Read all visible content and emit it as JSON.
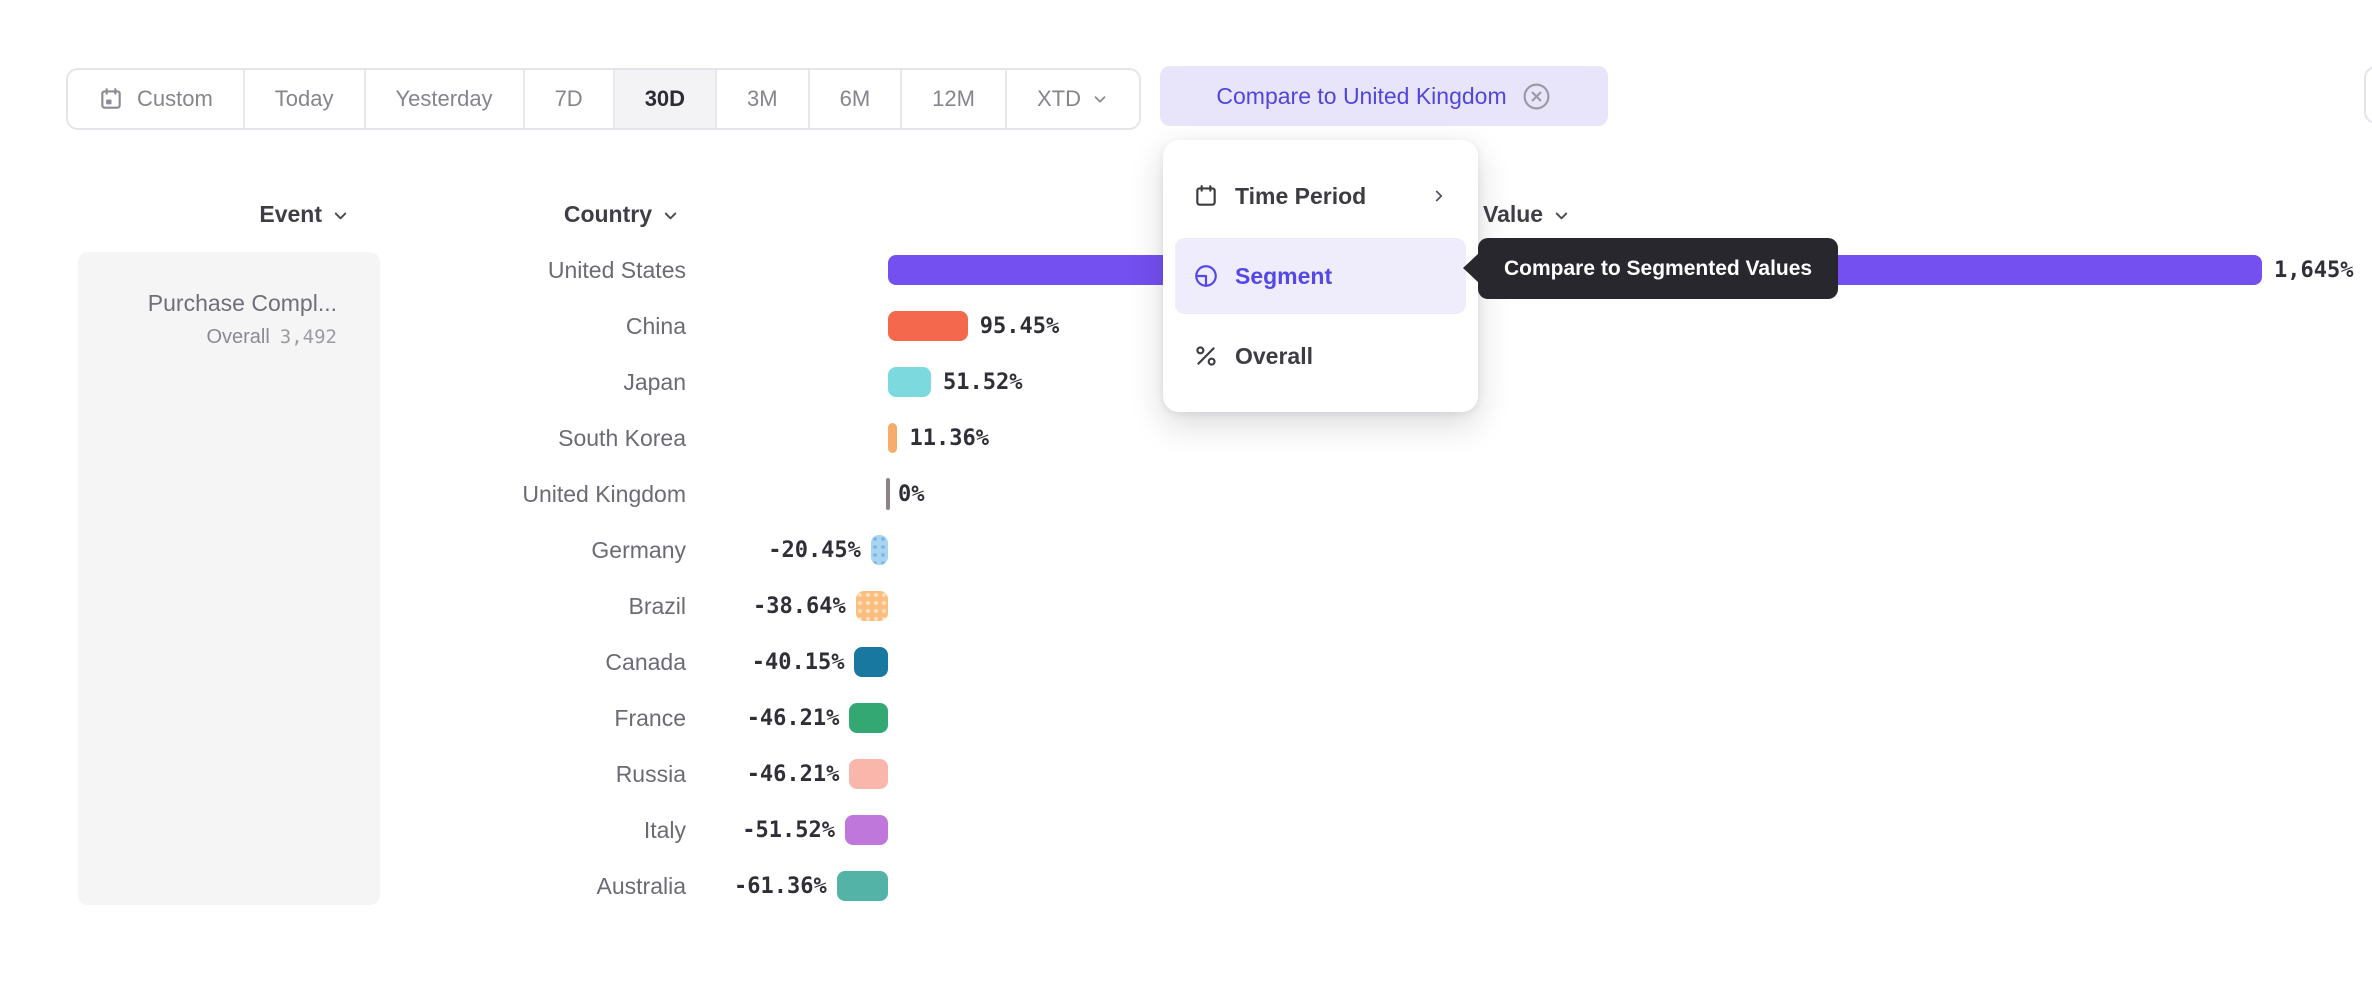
{
  "toolbar": {
    "date_ranges": [
      {
        "label": "Custom",
        "icon": "calendar-custom-icon",
        "active": false,
        "has_dropdown": false
      },
      {
        "label": "Today",
        "active": false,
        "has_dropdown": false
      },
      {
        "label": "Yesterday",
        "active": false,
        "has_dropdown": false
      },
      {
        "label": "7D",
        "active": false,
        "has_dropdown": false
      },
      {
        "label": "30D",
        "active": true,
        "has_dropdown": false
      },
      {
        "label": "3M",
        "active": false,
        "has_dropdown": false
      },
      {
        "label": "6M",
        "active": false,
        "has_dropdown": false
      },
      {
        "label": "12M",
        "active": false,
        "has_dropdown": false
      },
      {
        "label": "XTD",
        "active": false,
        "has_dropdown": true
      }
    ],
    "compare_button": {
      "label": "Compare to United Kingdom",
      "close_icon": "close-circle-icon"
    }
  },
  "columns": {
    "event": "Event",
    "country": "Country",
    "value": "Value"
  },
  "event_panel": {
    "event_name": "Purchase Compl...",
    "metric_label": "Overall",
    "metric_value": "3,492"
  },
  "context_menu": {
    "items": [
      {
        "label": "Time Period",
        "icon": "calendar-icon",
        "has_submenu": true,
        "selected": false
      },
      {
        "label": "Segment",
        "icon": "segment-icon",
        "has_submenu": false,
        "selected": true
      },
      {
        "label": "Overall",
        "icon": "percent-icon",
        "has_submenu": false,
        "selected": false
      }
    ]
  },
  "tooltip": {
    "text": "Compare to Segmented Values"
  },
  "colors": {
    "accent_text": "#5145DB",
    "compare_pill_bg": "#E8E5FA",
    "menu_highlight_bg": "#EFECFB",
    "menu_selected_text": "#5548E8",
    "tooltip_bg": "#28272E",
    "baseline_tick": "#8A8489"
  },
  "chart_data": {
    "type": "bar",
    "orientation": "horizontal",
    "unit": "%",
    "xlim": [
      -62,
      1645
    ],
    "baseline_category": "United Kingdom",
    "categories": [
      "United States",
      "China",
      "Japan",
      "South Korea",
      "United Kingdom",
      "Germany",
      "Brazil",
      "Canada",
      "France",
      "Russia",
      "Italy",
      "Australia"
    ],
    "values": [
      1645,
      95.45,
      51.52,
      11.36,
      0,
      -20.45,
      -38.64,
      -40.15,
      -46.21,
      -46.21,
      -51.52,
      -61.36
    ],
    "value_labels": [
      "1,645%",
      "95.45%",
      "51.52%",
      "11.36%",
      "0%",
      "-20.45%",
      "-38.64%",
      "-40.15%",
      "-46.21%",
      "-46.21%",
      "-51.52%",
      "-61.36%"
    ],
    "bar_colors": [
      "#7450F0",
      "#F4694D",
      "#7CD9DE",
      "#F8AC6B",
      "#8A8489",
      "#A8D4F2",
      "#FBBE7E",
      "#1878A0",
      "#33A873",
      "#F9B7AC",
      "#C077DC",
      "#52B3A6"
    ],
    "dot_pattern": [
      false,
      false,
      false,
      false,
      false,
      true,
      true,
      false,
      false,
      false,
      false,
      false
    ],
    "dot_colors": [
      "",
      "",
      "",
      "",
      "",
      "#7FB5E6",
      "rgba(255,255,255,0.6)",
      "",
      "",
      "",
      "",
      ""
    ]
  }
}
